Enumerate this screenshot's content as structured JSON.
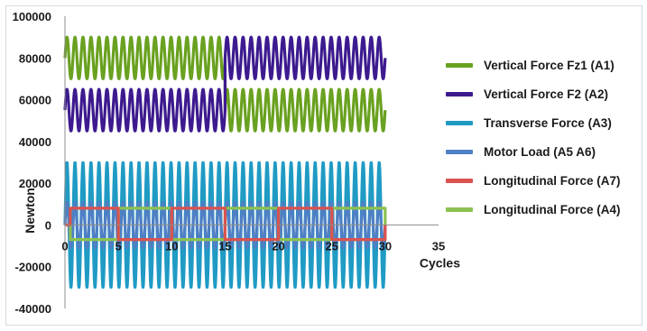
{
  "chart_data": {
    "type": "line",
    "title": "",
    "xlabel": "Cycles",
    "ylabel": "Newton",
    "xlim": [
      0,
      35
    ],
    "ylim": [
      -40000,
      100000
    ],
    "x_ticks": [
      0,
      5,
      10,
      15,
      20,
      25,
      30,
      35
    ],
    "y_ticks": [
      -40000,
      -20000,
      0,
      20000,
      40000,
      60000,
      80000,
      100000
    ],
    "x_tick_labels": [
      "0",
      "5",
      "10",
      "15",
      "20",
      "25",
      "30",
      "35"
    ],
    "y_tick_labels": [
      "-40000",
      "-20000",
      "0",
      "20000",
      "40000",
      "60000",
      "80000",
      "100000"
    ],
    "grid": false,
    "legend_position": "right",
    "series": [
      {
        "name": "Vertical Force Fz1 (A1)",
        "color": "#6aa121",
        "shape": "sine",
        "segments": [
          {
            "x_start": 0,
            "x_end": 15,
            "center": 80000,
            "amplitude": 10000,
            "cycles": 20
          },
          {
            "x_start": 15,
            "x_end": 30,
            "center": 55000,
            "amplitude": 10000,
            "cycles": 20
          }
        ]
      },
      {
        "name": "Vertical Force F2 (A2)",
        "color": "#3d1b8f",
        "shape": "sine",
        "segments": [
          {
            "x_start": 0,
            "x_end": 15,
            "center": 55000,
            "amplitude": 10000,
            "cycles": 20
          },
          {
            "x_start": 15,
            "x_end": 30,
            "center": 80000,
            "amplitude": 10000,
            "cycles": 20
          }
        ]
      },
      {
        "name": "Transverse Force (A3)",
        "color": "#1f9bc4",
        "shape": "sine",
        "segments": [
          {
            "x_start": 0,
            "x_end": 15,
            "center": 0,
            "amplitude": 30000,
            "cycles": 20
          },
          {
            "x_start": 15,
            "x_end": 30,
            "center": 0,
            "amplitude": 30000,
            "cycles": 20
          }
        ]
      },
      {
        "name": "Motor Load (A5 A6)",
        "color": "#4f7fc4",
        "shape": "sine",
        "segments": [
          {
            "x_start": 0,
            "x_end": 30,
            "center": 0,
            "amplitude": 11000,
            "cycles": 40
          }
        ]
      },
      {
        "name": "Longitudinal Force (A7)",
        "color": "#d9534f",
        "shape": "square",
        "segments": [
          {
            "x_start": 0,
            "x_end": 0.5,
            "value": 0
          },
          {
            "x_start": 0.5,
            "x_end": 5,
            "value": 8000
          },
          {
            "x_start": 5,
            "x_end": 10,
            "value": -7000
          },
          {
            "x_start": 10,
            "x_end": 15,
            "value": 8000
          },
          {
            "x_start": 15,
            "x_end": 20,
            "value": -7000
          },
          {
            "x_start": 20,
            "x_end": 25,
            "value": 8000
          },
          {
            "x_start": 25,
            "x_end": 30,
            "value": -7000
          }
        ]
      },
      {
        "name": "Longitudinal Force (A4)",
        "color": "#8cc152",
        "shape": "square",
        "segments": [
          {
            "x_start": 0,
            "x_end": 0.5,
            "value": 0
          },
          {
            "x_start": 0.5,
            "x_end": 5,
            "value": -7000
          },
          {
            "x_start": 5,
            "x_end": 10,
            "value": 8000
          },
          {
            "x_start": 10,
            "x_end": 15,
            "value": -7000
          },
          {
            "x_start": 15,
            "x_end": 20,
            "value": 8000
          },
          {
            "x_start": 20,
            "x_end": 25,
            "value": -7000
          },
          {
            "x_start": 25,
            "x_end": 30,
            "value": 8000
          }
        ]
      }
    ]
  }
}
